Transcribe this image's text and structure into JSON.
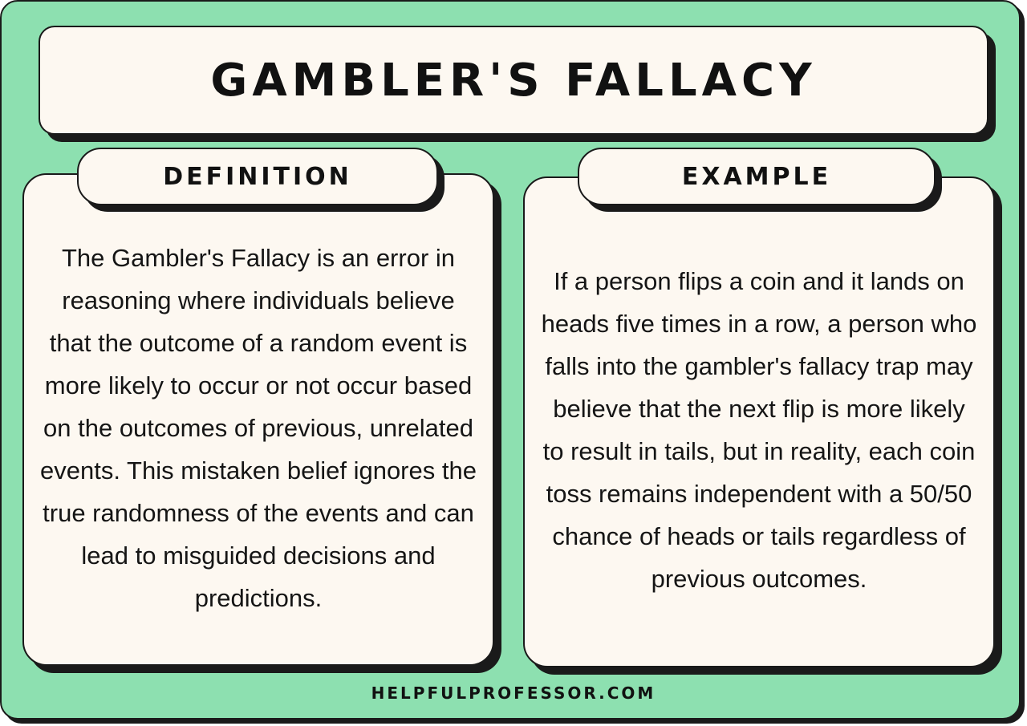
{
  "header": {
    "title": "GAMBLER'S FALLACY"
  },
  "definition": {
    "label": "DEFINITION",
    "text": "The Gambler's Fallacy is an error in reasoning where individuals believe that the outcome of a random event is more likely to occur or not occur based on the outcomes of previous, unrelated events. This mistaken belief ignores the true randomness of the events and can lead to misguided decisions and predictions."
  },
  "example": {
    "label": "EXAMPLE",
    "text": "If a person flips a coin and it lands on heads five times in a row, a person who falls into the gambler's fallacy trap may believe that the next flip is more likely to result in tails, but in reality, each coin toss remains independent with a 50/50 chance of heads or tails regardless of previous outcomes."
  },
  "footer": {
    "site": "HELPFULPROFESSOR.COM"
  },
  "colors": {
    "background": "#8de0b0",
    "card": "#fdf8f1",
    "outline": "#1a1a1a"
  }
}
